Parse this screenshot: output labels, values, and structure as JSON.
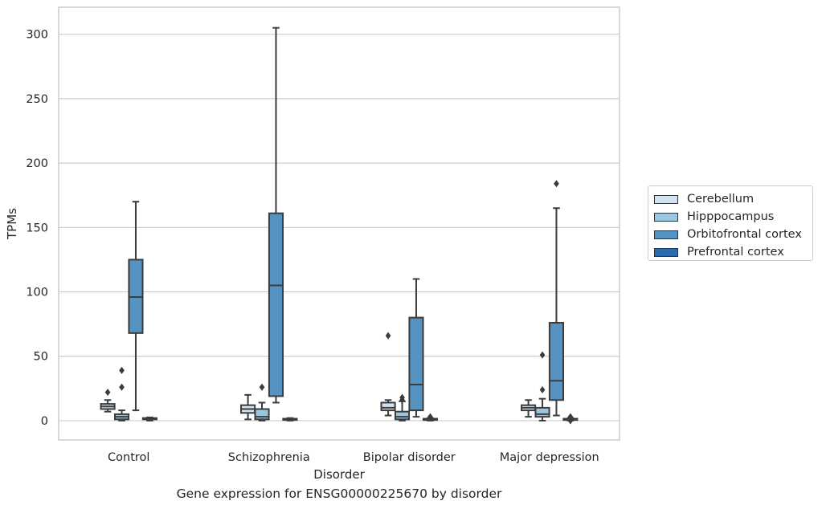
{
  "chart_data": {
    "type": "box",
    "title": "",
    "caption": "Gene expression for ENSG00000225670 by disorder",
    "xlabel": "Disorder",
    "ylabel": "TPMs",
    "ylim": [
      -15,
      321
    ],
    "yticks": [
      0,
      50,
      100,
      150,
      200,
      250,
      300
    ],
    "grid": "horizontal",
    "legend_position": "right",
    "categories": [
      "Control",
      "Schizophrenia",
      "Bipolar disorder",
      "Major depression"
    ],
    "series": [
      {
        "name": "Cerebellum",
        "color": "#d1e2f2",
        "boxes": [
          {
            "whislo": 7,
            "q1": 9,
            "med": 11,
            "q3": 13,
            "whishi": 16,
            "fliers": [
              22
            ]
          },
          {
            "whislo": 1,
            "q1": 6,
            "med": 9,
            "q3": 12,
            "whishi": 20,
            "fliers": []
          },
          {
            "whislo": 4,
            "q1": 8,
            "med": 10,
            "q3": 14,
            "whishi": 16,
            "fliers": [
              66
            ]
          },
          {
            "whislo": 3,
            "q1": 8,
            "med": 10,
            "q3": 12,
            "whishi": 16,
            "fliers": []
          }
        ]
      },
      {
        "name": "Hipppocampus",
        "color": "#9ac7e0",
        "boxes": [
          {
            "whislo": 0,
            "q1": 1,
            "med": 3,
            "q3": 5,
            "whishi": 8,
            "fliers": [
              26,
              39
            ]
          },
          {
            "whislo": 0,
            "q1": 1,
            "med": 3,
            "q3": 9,
            "whishi": 14,
            "fliers": [
              26
            ]
          },
          {
            "whislo": 0,
            "q1": 1,
            "med": 3,
            "q3": 7,
            "whishi": 15,
            "fliers": [
              16,
              18
            ]
          },
          {
            "whislo": 0,
            "q1": 3,
            "med": 5,
            "q3": 10,
            "whishi": 17,
            "fliers": [
              24,
              51
            ]
          }
        ]
      },
      {
        "name": "Orbitofrontal cortex",
        "color": "#5594c2",
        "boxes": [
          {
            "whislo": 8,
            "q1": 68,
            "med": 96,
            "q3": 125,
            "whishi": 170,
            "fliers": []
          },
          {
            "whislo": 14,
            "q1": 19,
            "med": 105,
            "q3": 161,
            "whishi": 305,
            "fliers": []
          },
          {
            "whislo": 3,
            "q1": 8,
            "med": 28,
            "q3": 80,
            "whishi": 110,
            "fliers": []
          },
          {
            "whislo": 4,
            "q1": 16,
            "med": 31,
            "q3": 76,
            "whishi": 165,
            "fliers": [
              184
            ]
          }
        ]
      },
      {
        "name": "Prefrontal cortex",
        "color": "#2a6aad",
        "boxes": [
          {
            "whislo": 0,
            "q1": 1,
            "med": 1.5,
            "q3": 2,
            "whishi": 2.5,
            "fliers": []
          },
          {
            "whislo": 0,
            "q1": 0.5,
            "med": 1,
            "q3": 1.5,
            "whishi": 2,
            "fliers": []
          },
          {
            "whislo": 0,
            "q1": 0.5,
            "med": 1,
            "q3": 1.5,
            "whishi": 2,
            "fliers": [
              3
            ]
          },
          {
            "whislo": 0,
            "q1": 0.5,
            "med": 1,
            "q3": 1.5,
            "whishi": 2,
            "fliers": [
              0,
              3
            ]
          }
        ]
      }
    ]
  }
}
